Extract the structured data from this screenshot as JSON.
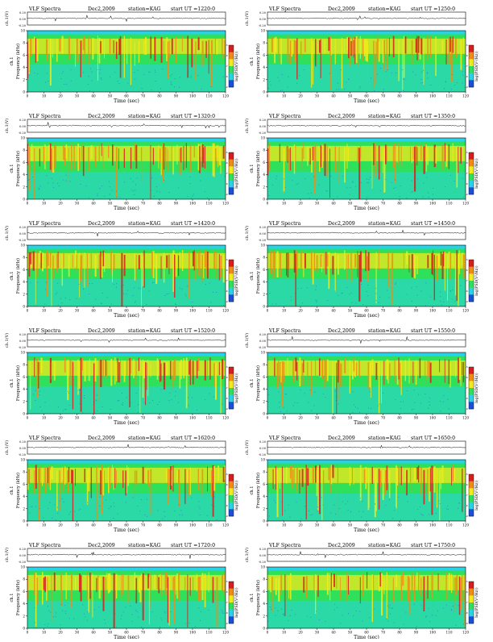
{
  "header_common": {
    "title": "VLF Spectra",
    "date": "Dec2,2009",
    "station": "station=KAG",
    "start_prefix": "start UT ="
  },
  "labels": {
    "ch1v": "ch.1(V)",
    "freq": "Frequency (kHz)",
    "ch1": "ch.1",
    "time": "Time (sec)",
    "colorbar": "log(PSD(V²/Hz))"
  },
  "colors": {
    "background_cyan": "#29d3e6",
    "green": "#2ee05a",
    "yellow": "#f2ea1a",
    "orange": "#f08c14",
    "red": "#d81d1d",
    "blue": "#1c4fd8",
    "waveform": "#000000"
  },
  "chart_data": [
    {
      "type": "heatmap",
      "start_ut": "1220:0",
      "x_label": "Time (sec)",
      "y_label": "Frequency (kHz)",
      "xlim": [
        0,
        120
      ],
      "ylim": [
        0,
        10
      ],
      "x_ticks": [
        0,
        10,
        20,
        30,
        40,
        50,
        60,
        70,
        80,
        90,
        100,
        110,
        120
      ],
      "y_ticks": [
        0,
        2,
        4,
        6,
        8,
        10
      ],
      "wave_ticks": [
        "0.20",
        "0.00",
        "-0.20"
      ],
      "colorbar_ticks": [
        "-5",
        "-6",
        "-7",
        "-8",
        "-9"
      ]
    },
    {
      "type": "heatmap",
      "start_ut": "1250:0",
      "x_label": "Time (sec)",
      "y_label": "Frequency (kHz)",
      "xlim": [
        0,
        120
      ],
      "ylim": [
        0,
        10
      ],
      "x_ticks": [
        0,
        10,
        20,
        30,
        40,
        50,
        60,
        70,
        80,
        90,
        100,
        110,
        120
      ],
      "y_ticks": [
        0,
        2,
        4,
        6,
        8,
        10
      ],
      "wave_ticks": [
        "0.20",
        "0.00",
        "-0.20"
      ],
      "colorbar_ticks": [
        "-5",
        "-6",
        "-7",
        "-8",
        "-9"
      ]
    },
    {
      "type": "heatmap",
      "start_ut": "1320:0",
      "x_label": "Time (sec)",
      "y_label": "Frequency (kHz)",
      "xlim": [
        0,
        120
      ],
      "ylim": [
        0,
        10
      ],
      "x_ticks": [
        0,
        10,
        20,
        30,
        40,
        50,
        60,
        70,
        80,
        90,
        100,
        110,
        120
      ],
      "y_ticks": [
        0,
        2,
        4,
        6,
        8,
        10
      ],
      "wave_ticks": [
        "0.20",
        "0.00",
        "-0.20"
      ],
      "colorbar_ticks": [
        "-5",
        "-6",
        "-7",
        "-8",
        "-9"
      ]
    },
    {
      "type": "heatmap",
      "start_ut": "1350:0",
      "x_label": "Time (sec)",
      "y_label": "Frequency (kHz)",
      "xlim": [
        0,
        120
      ],
      "ylim": [
        0,
        10
      ],
      "x_ticks": [
        0,
        10,
        20,
        30,
        40,
        50,
        60,
        70,
        80,
        90,
        100,
        110,
        120
      ],
      "y_ticks": [
        0,
        2,
        4,
        6,
        8,
        10
      ],
      "wave_ticks": [
        "0.20",
        "0.00",
        "-0.20"
      ],
      "colorbar_ticks": [
        "-5",
        "-6",
        "-7",
        "-8",
        "-9"
      ]
    },
    {
      "type": "heatmap",
      "start_ut": "1420:0",
      "x_label": "Time (sec)",
      "y_label": "Frequency (kHz)",
      "xlim": [
        0,
        120
      ],
      "ylim": [
        0,
        10
      ],
      "x_ticks": [
        0,
        10,
        20,
        30,
        40,
        50,
        60,
        70,
        80,
        90,
        100,
        110,
        120
      ],
      "y_ticks": [
        0,
        2,
        4,
        6,
        8,
        10
      ],
      "wave_ticks": [
        "0.20",
        "0.00",
        "-0.20"
      ],
      "colorbar_ticks": [
        "-5",
        "-6",
        "-7",
        "-8",
        "-9"
      ]
    },
    {
      "type": "heatmap",
      "start_ut": "1450:0",
      "x_label": "Time (sec)",
      "y_label": "Frequency (kHz)",
      "xlim": [
        0,
        120
      ],
      "ylim": [
        0,
        10
      ],
      "x_ticks": [
        0,
        10,
        20,
        30,
        40,
        50,
        60,
        70,
        80,
        90,
        100,
        110,
        120
      ],
      "y_ticks": [
        0,
        2,
        4,
        6,
        8,
        10
      ],
      "wave_ticks": [
        "0.20",
        "0.00",
        "-0.20"
      ],
      "colorbar_ticks": [
        "-5",
        "-6",
        "-7",
        "-8",
        "-9"
      ]
    },
    {
      "type": "heatmap",
      "start_ut": "1520:0",
      "x_label": "Time (sec)",
      "y_label": "Frequency (kHz)",
      "xlim": [
        0,
        120
      ],
      "ylim": [
        0,
        10
      ],
      "x_ticks": [
        0,
        10,
        20,
        30,
        40,
        50,
        60,
        70,
        80,
        90,
        100,
        110,
        120
      ],
      "y_ticks": [
        0,
        2,
        4,
        6,
        8,
        10
      ],
      "wave_ticks": [
        "0.20",
        "0.00",
        "-0.20"
      ],
      "colorbar_ticks": [
        "-5",
        "-6",
        "-7",
        "-8",
        "-9"
      ]
    },
    {
      "type": "heatmap",
      "start_ut": "1550:0",
      "x_label": "Time (sec)",
      "y_label": "Frequency (kHz)",
      "xlim": [
        0,
        120
      ],
      "ylim": [
        0,
        10
      ],
      "x_ticks": [
        0,
        10,
        20,
        30,
        40,
        50,
        60,
        70,
        80,
        90,
        100,
        110,
        120
      ],
      "y_ticks": [
        0,
        2,
        4,
        6,
        8,
        10
      ],
      "wave_ticks": [
        "0.20",
        "0.00",
        "-0.20"
      ],
      "colorbar_ticks": [
        "-5",
        "-6",
        "-7",
        "-8",
        "-9"
      ]
    },
    {
      "type": "heatmap",
      "start_ut": "1620:0",
      "x_label": "Time (sec)",
      "y_label": "Frequency (kHz)",
      "xlim": [
        0,
        120
      ],
      "ylim": [
        0,
        10
      ],
      "x_ticks": [
        0,
        10,
        20,
        30,
        40,
        50,
        60,
        70,
        80,
        90,
        100,
        110,
        120
      ],
      "y_ticks": [
        0,
        2,
        4,
        6,
        8,
        10
      ],
      "wave_ticks": [
        "0.20",
        "0.00",
        "-0.20"
      ],
      "colorbar_ticks": [
        "-5",
        "-6",
        "-7",
        "-8",
        "-9"
      ]
    },
    {
      "type": "heatmap",
      "start_ut": "1650:0",
      "x_label": "Time (sec)",
      "y_label": "Frequency (kHz)",
      "xlim": [
        0,
        120
      ],
      "ylim": [
        0,
        10
      ],
      "x_ticks": [
        0,
        10,
        20,
        30,
        40,
        50,
        60,
        70,
        80,
        90,
        100,
        110,
        120
      ],
      "y_ticks": [
        0,
        2,
        4,
        6,
        8,
        10
      ],
      "wave_ticks": [
        "0.20",
        "0.00",
        "-0.20"
      ],
      "colorbar_ticks": [
        "-5",
        "-6",
        "-7",
        "-8",
        "-9"
      ]
    },
    {
      "type": "heatmap",
      "start_ut": "1720:0",
      "x_label": "Time (sec)",
      "y_label": "Frequency (kHz)",
      "xlim": [
        0,
        120
      ],
      "ylim": [
        0,
        10
      ],
      "x_ticks": [
        0,
        10,
        20,
        30,
        40,
        50,
        60,
        70,
        80,
        90,
        100,
        110,
        120
      ],
      "y_ticks": [
        0,
        2,
        4,
        6,
        8,
        10
      ],
      "wave_ticks": [
        "0.20",
        "0.00",
        "-0.20"
      ],
      "colorbar_ticks": [
        "-5",
        "-6",
        "-7",
        "-8",
        "-9"
      ]
    },
    {
      "type": "heatmap",
      "start_ut": "1750:0",
      "x_label": "Time (sec)",
      "y_label": "Frequency (kHz)",
      "xlim": [
        0,
        120
      ],
      "ylim": [
        0,
        10
      ],
      "x_ticks": [
        0,
        10,
        20,
        30,
        40,
        50,
        60,
        70,
        80,
        90,
        100,
        110,
        120
      ],
      "y_ticks": [
        0,
        2,
        4,
        6,
        8,
        10
      ],
      "wave_ticks": [
        "0.20",
        "0.00",
        "-0.20"
      ],
      "colorbar_ticks": [
        "-5",
        "-6",
        "-7",
        "-8",
        "-9"
      ]
    }
  ]
}
